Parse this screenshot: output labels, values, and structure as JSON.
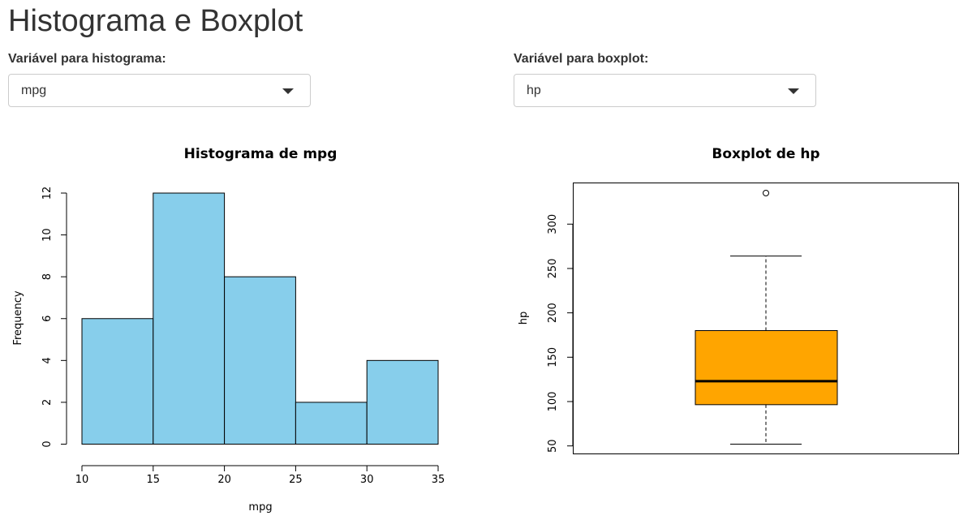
{
  "page": {
    "title": "Histograma e Boxplot"
  },
  "controls": {
    "hist_label": "Variável para histograma:",
    "hist_value": "mpg",
    "box_label": "Variável para boxplot:",
    "box_value": "hp",
    "caret_icon": "chevron-down-icon"
  },
  "chart_data": [
    {
      "type": "bar",
      "title": "Histograma de mpg",
      "xlabel": "mpg",
      "ylabel": "Frequency",
      "bins": [
        [
          10,
          15
        ],
        [
          15,
          20
        ],
        [
          20,
          25
        ],
        [
          25,
          30
        ],
        [
          30,
          35
        ]
      ],
      "values": [
        6,
        12,
        8,
        2,
        4
      ],
      "xlim": [
        10,
        35
      ],
      "ylim": [
        0,
        12
      ],
      "x_ticks": [
        "10",
        "15",
        "20",
        "25",
        "30",
        "35"
      ],
      "y_ticks": [
        "0",
        "2",
        "4",
        "6",
        "8",
        "10",
        "12"
      ],
      "fill_color": "#87ceeb",
      "grid": false
    },
    {
      "type": "boxplot",
      "title": "Boxplot de hp",
      "xlabel": "",
      "ylabel": "hp",
      "min": 52,
      "q1": 96.5,
      "median": 123,
      "q3": 180,
      "max": 264,
      "outliers": [
        335
      ],
      "ylim": [
        52,
        335
      ],
      "y_ticks": [
        "50",
        "100",
        "150",
        "200",
        "250",
        "300"
      ],
      "fill_color": "#ffa500",
      "grid": false
    }
  ]
}
